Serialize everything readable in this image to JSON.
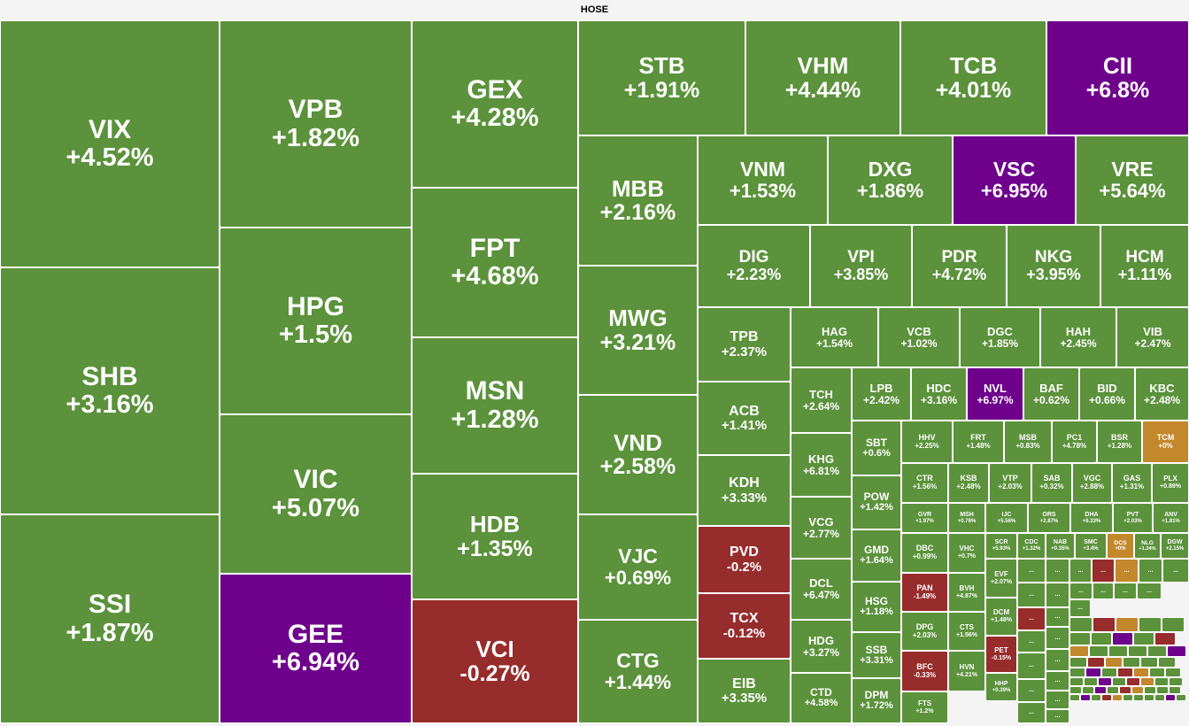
{
  "chart_data": {
    "type": "treemap",
    "title": "HOSE",
    "colors": {
      "up": "#5b923b",
      "down": "#972c2c",
      "ceiling": "#6e008c",
      "flat": "#c3872c"
    },
    "tiles": [
      {
        "symbol": "VIX",
        "change": "+4.52%",
        "status": "up"
      },
      {
        "symbol": "SHB",
        "change": "+3.16%",
        "status": "up"
      },
      {
        "symbol": "SSI",
        "change": "+1.87%",
        "status": "up"
      },
      {
        "symbol": "VPB",
        "change": "+1.82%",
        "status": "up"
      },
      {
        "symbol": "HPG",
        "change": "+1.5%",
        "status": "up"
      },
      {
        "symbol": "VIC",
        "change": "+5.07%",
        "status": "up"
      },
      {
        "symbol": "GEE",
        "change": "+6.94%",
        "status": "ceiling"
      },
      {
        "symbol": "GEX",
        "change": "+4.28%",
        "status": "up"
      },
      {
        "symbol": "FPT",
        "change": "+4.68%",
        "status": "up"
      },
      {
        "symbol": "MSN",
        "change": "+1.28%",
        "status": "up"
      },
      {
        "symbol": "HDB",
        "change": "+1.35%",
        "status": "up"
      },
      {
        "symbol": "VCI",
        "change": "-0.27%",
        "status": "down"
      },
      {
        "symbol": "STB",
        "change": "+1.91%",
        "status": "up"
      },
      {
        "symbol": "VHM",
        "change": "+4.44%",
        "status": "up"
      },
      {
        "symbol": "TCB",
        "change": "+4.01%",
        "status": "up"
      },
      {
        "symbol": "CII",
        "change": "+6.8%",
        "status": "ceiling"
      },
      {
        "symbol": "MBB",
        "change": "+2.16%",
        "status": "up"
      },
      {
        "symbol": "MWG",
        "change": "+3.21%",
        "status": "up"
      },
      {
        "symbol": "VND",
        "change": "+2.58%",
        "status": "up"
      },
      {
        "symbol": "VJC",
        "change": "+0.69%",
        "status": "up"
      },
      {
        "symbol": "CTG",
        "change": "+1.44%",
        "status": "up"
      },
      {
        "symbol": "VNM",
        "change": "+1.53%",
        "status": "up"
      },
      {
        "symbol": "DXG",
        "change": "+1.86%",
        "status": "up"
      },
      {
        "symbol": "VSC",
        "change": "+6.95%",
        "status": "ceiling"
      },
      {
        "symbol": "VRE",
        "change": "+5.64%",
        "status": "up"
      },
      {
        "symbol": "DIG",
        "change": "+2.23%",
        "status": "up"
      },
      {
        "symbol": "VPI",
        "change": "+3.85%",
        "status": "up"
      },
      {
        "symbol": "PDR",
        "change": "+4.72%",
        "status": "up"
      },
      {
        "symbol": "NKG",
        "change": "+3.95%",
        "status": "up"
      },
      {
        "symbol": "HCM",
        "change": "+1.11%",
        "status": "up"
      },
      {
        "symbol": "TPB",
        "change": "+2.37%",
        "status": "up"
      },
      {
        "symbol": "ACB",
        "change": "+1.41%",
        "status": "up"
      },
      {
        "symbol": "KDH",
        "change": "+3.33%",
        "status": "up"
      },
      {
        "symbol": "PVD",
        "change": "-0.2%",
        "status": "down"
      },
      {
        "symbol": "TCX",
        "change": "-0.12%",
        "status": "down"
      },
      {
        "symbol": "EIB",
        "change": "+3.35%",
        "status": "up"
      },
      {
        "symbol": "HAG",
        "change": "+1.54%",
        "status": "up"
      },
      {
        "symbol": "VCB",
        "change": "+1.02%",
        "status": "up"
      },
      {
        "symbol": "DGC",
        "change": "+1.85%",
        "status": "up"
      },
      {
        "symbol": "HAH",
        "change": "+2.45%",
        "status": "up"
      },
      {
        "symbol": "VIB",
        "change": "+2.47%",
        "status": "up"
      },
      {
        "symbol": "TCH",
        "change": "+2.64%",
        "status": "up"
      },
      {
        "symbol": "KHG",
        "change": "+6.81%",
        "status": "up"
      },
      {
        "symbol": "VCG",
        "change": "+2.77%",
        "status": "up"
      },
      {
        "symbol": "DCL",
        "change": "+6.47%",
        "status": "up"
      },
      {
        "symbol": "HDG",
        "change": "+3.27%",
        "status": "up"
      },
      {
        "symbol": "CTD",
        "change": "+4.58%",
        "status": "up"
      },
      {
        "symbol": "LPB",
        "change": "+2.42%",
        "status": "up"
      },
      {
        "symbol": "HDC",
        "change": "+3.16%",
        "status": "up"
      },
      {
        "symbol": "NVL",
        "change": "+6.97%",
        "status": "ceiling"
      },
      {
        "symbol": "BAF",
        "change": "+0.62%",
        "status": "up"
      },
      {
        "symbol": "BID",
        "change": "+0.66%",
        "status": "up"
      },
      {
        "symbol": "KBC",
        "change": "+2.48%",
        "status": "up"
      },
      {
        "symbol": "SBT",
        "change": "+0.6%",
        "status": "up"
      },
      {
        "symbol": "POW",
        "change": "+1.42%",
        "status": "up"
      },
      {
        "symbol": "GMD",
        "change": "+1.64%",
        "status": "up"
      },
      {
        "symbol": "HSG",
        "change": "+1.18%",
        "status": "up"
      },
      {
        "symbol": "SSB",
        "change": "+3.31%",
        "status": "up"
      },
      {
        "symbol": "DPM",
        "change": "+1.72%",
        "status": "up"
      },
      {
        "symbol": "HHV",
        "change": "+2.25%",
        "status": "up"
      },
      {
        "symbol": "FRT",
        "change": "+1.48%",
        "status": "up"
      },
      {
        "symbol": "MSB",
        "change": "+0.83%",
        "status": "up"
      },
      {
        "symbol": "PC1",
        "change": "+4.78%",
        "status": "up"
      },
      {
        "symbol": "BSR",
        "change": "+1.28%",
        "status": "up"
      },
      {
        "symbol": "TCM",
        "change": "+0%",
        "status": "flat"
      },
      {
        "symbol": "CTR",
        "change": "+1.56%",
        "status": "up"
      },
      {
        "symbol": "KSB",
        "change": "+2.48%",
        "status": "up"
      },
      {
        "symbol": "VTP",
        "change": "+2.03%",
        "status": "up"
      },
      {
        "symbol": "SAB",
        "change": "+0.32%",
        "status": "up"
      },
      {
        "symbol": "VGC",
        "change": "+2.88%",
        "status": "up"
      },
      {
        "symbol": "GAS",
        "change": "+1.31%",
        "status": "up"
      },
      {
        "symbol": "PLX",
        "change": "+0.89%",
        "status": "up"
      },
      {
        "symbol": "GVR",
        "change": "+1.97%",
        "status": "up"
      },
      {
        "symbol": "MSH",
        "change": "+0.76%",
        "status": "up"
      },
      {
        "symbol": "IJC",
        "change": "+5.56%",
        "status": "up"
      },
      {
        "symbol": "ORS",
        "change": "+2.87%",
        "status": "up"
      },
      {
        "symbol": "DHA",
        "change": "+6.33%",
        "status": "up"
      },
      {
        "symbol": "PVT",
        "change": "+2.03%",
        "status": "up"
      },
      {
        "symbol": "ANV",
        "change": "+1.81%",
        "status": "up"
      },
      {
        "symbol": "DBC",
        "change": "+0.99%",
        "status": "up"
      },
      {
        "symbol": "VHC",
        "change": "+0.7%",
        "status": "up"
      },
      {
        "symbol": "SCR",
        "change": "+5.93%",
        "status": "up"
      },
      {
        "symbol": "CDC",
        "change": "+1.32%",
        "status": "up"
      },
      {
        "symbol": "NAB",
        "change": "+0.35%",
        "status": "up"
      },
      {
        "symbol": "SMC",
        "change": "+3.4%",
        "status": "up"
      },
      {
        "symbol": "DCS",
        "change": "+0%",
        "status": "flat"
      },
      {
        "symbol": "NLG",
        "change": "+1.24%",
        "status": "up"
      },
      {
        "symbol": "DGW",
        "change": "+2.15%",
        "status": "up"
      },
      {
        "symbol": "PAN",
        "change": "-1.49%",
        "status": "down"
      },
      {
        "symbol": "BVH",
        "change": "+4.87%",
        "status": "up"
      },
      {
        "symbol": "EVF",
        "change": "+2.07%",
        "status": "up"
      },
      {
        "symbol": "DPG",
        "change": "+2.03%",
        "status": "up"
      },
      {
        "symbol": "CTS",
        "change": "+1.56%",
        "status": "up"
      },
      {
        "symbol": "DCM",
        "change": "+1.48%",
        "status": "up"
      },
      {
        "symbol": "BFC",
        "change": "-0.33%",
        "status": "down"
      },
      {
        "symbol": "HVN",
        "change": "+4.21%",
        "status": "up"
      },
      {
        "symbol": "PET",
        "change": "-0.15%",
        "status": "down"
      },
      {
        "symbol": "HHP",
        "change": "+0.39%",
        "status": "up"
      },
      {
        "symbol": "FTS",
        "change": "+1.2%",
        "status": "up"
      }
    ],
    "small_tiles": [
      {
        "symbol": "...",
        "status": "up"
      },
      {
        "symbol": "...",
        "status": "up"
      },
      {
        "symbol": "...",
        "status": "up"
      },
      {
        "symbol": "...",
        "status": "down"
      },
      {
        "symbol": "...",
        "status": "flat"
      },
      {
        "symbol": "...",
        "status": "up"
      },
      {
        "symbol": "...",
        "status": "up"
      },
      {
        "symbol": "...",
        "status": "up"
      },
      {
        "symbol": "...",
        "status": "up"
      },
      {
        "symbol": "...",
        "status": "up"
      },
      {
        "symbol": "...",
        "status": "up"
      },
      {
        "symbol": "...",
        "status": "up"
      },
      {
        "symbol": "...",
        "status": "up"
      },
      {
        "symbol": "...",
        "status": "down"
      },
      {
        "symbol": "...",
        "status": "up"
      },
      {
        "symbol": "...",
        "status": "up"
      },
      {
        "symbol": "...",
        "status": "up"
      },
      {
        "symbol": "...",
        "status": "up"
      },
      {
        "symbol": "...",
        "status": "up"
      },
      {
        "symbol": "...",
        "status": "up"
      },
      {
        "symbol": "...",
        "status": "up"
      },
      {
        "symbol": "...",
        "status": "up"
      },
      {
        "symbol": "...",
        "status": "up"
      },
      {
        "symbol": "...",
        "status": "up"
      },
      {
        "symbol": "...",
        "status": "up"
      }
    ]
  }
}
